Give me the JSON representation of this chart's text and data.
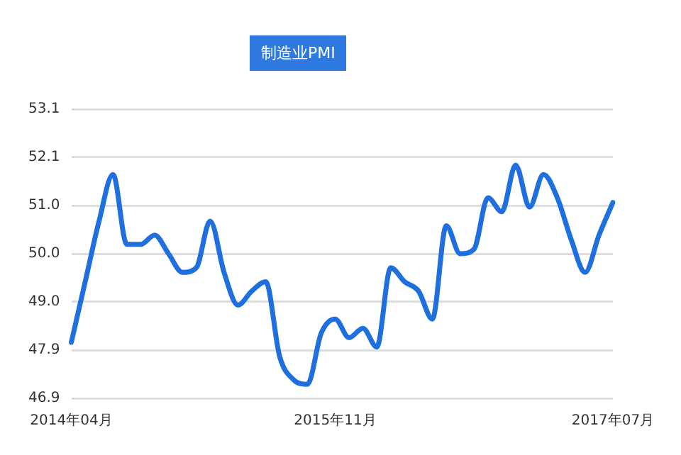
{
  "chart_data": {
    "type": "line",
    "title": "制造业PMI",
    "categories": [
      "2014年04月",
      null,
      null,
      null,
      null,
      null,
      null,
      null,
      null,
      null,
      null,
      null,
      null,
      null,
      null,
      null,
      null,
      null,
      null,
      "2015年11月",
      null,
      null,
      null,
      null,
      null,
      null,
      null,
      null,
      null,
      null,
      null,
      null,
      null,
      null,
      null,
      null,
      null,
      null,
      null,
      "2017年07月"
    ],
    "series": [
      {
        "color": "#1f6fde",
        "values": [
          48.1,
          49.4,
          50.7,
          51.7,
          50.2,
          50.2,
          50.4,
          50.0,
          49.6,
          49.7,
          50.7,
          49.6,
          48.9,
          49.2,
          49.4,
          47.8,
          47.3,
          47.2,
          48.3,
          48.6,
          48.2,
          48.4,
          48.0,
          49.7,
          49.4,
          49.2,
          48.6,
          50.6,
          50.0,
          50.1,
          51.2,
          50.9,
          51.9,
          51.0,
          51.7,
          51.2,
          50.3,
          49.6,
          50.4,
          51.1
        ]
      }
    ],
    "ylim": [
      46.9,
      53.1
    ],
    "yticks": [
      46.9,
      {
        "value": 47.933,
        "label": "47.9"
      },
      {
        "value": 48.967,
        "label": "49.0"
      },
      {
        "value": 50.0,
        "label": "50.0"
      },
      {
        "value": 51.033,
        "label": "51.0"
      },
      {
        "value": 52.067,
        "label": "52.1"
      },
      53.1
    ],
    "grid": "y",
    "legend": false,
    "marker": "none",
    "line_style": "solid"
  }
}
